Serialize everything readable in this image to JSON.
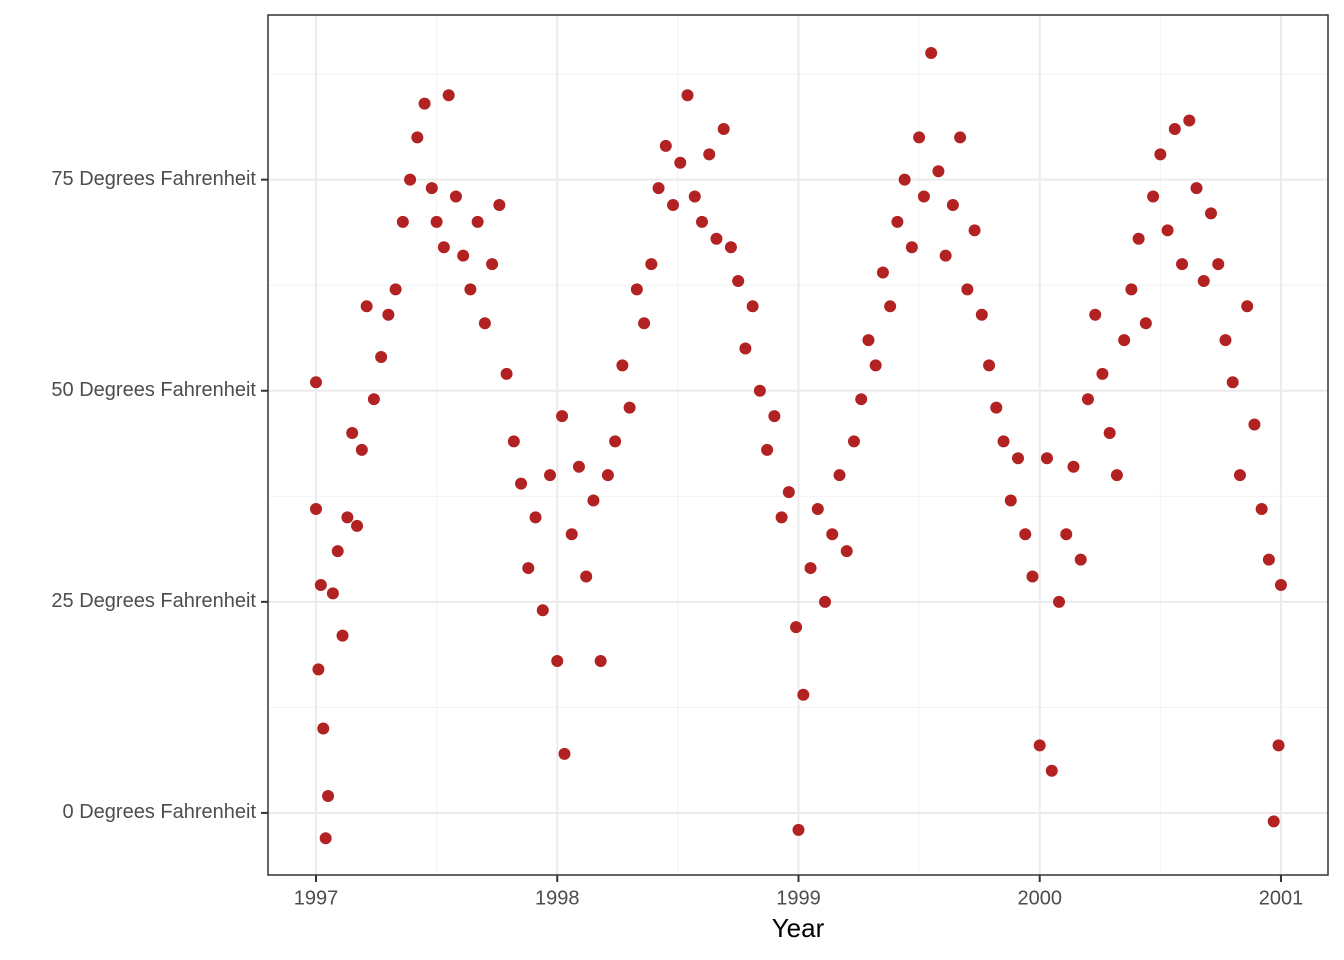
{
  "chart_data": {
    "type": "scatter",
    "x_label": "Year",
    "color": "#b22222",
    "grid": true,
    "xlim": [
      1996.801,
      2001.195
    ],
    "ylim": [
      -7.35,
      94.5
    ],
    "xticks": [
      1997,
      1998,
      1999,
      2000,
      2001
    ],
    "xticks_minor": [
      1997.5,
      1998.5,
      1999.5,
      2000.5
    ],
    "yticks": [
      {
        "value": 0,
        "label": "0 Degrees Fahrenheit"
      },
      {
        "value": 25,
        "label": "25 Degrees Fahrenheit"
      },
      {
        "value": 50,
        "label": "50 Degrees Fahrenheit"
      },
      {
        "value": 75,
        "label": "75 Degrees Fahrenheit"
      }
    ],
    "yticks_minor": [
      12.5,
      37.5,
      62.5,
      87.5
    ],
    "x": [
      1997.0,
      1997.0,
      1997.01,
      1997.02,
      1997.03,
      1997.04,
      1997.05,
      1997.07,
      1997.09,
      1997.11,
      1997.13,
      1997.15,
      1997.17,
      1997.19,
      1997.21,
      1997.24,
      1997.27,
      1997.3,
      1997.33,
      1997.36,
      1997.39,
      1997.42,
      1997.45,
      1997.48,
      1997.5,
      1997.53,
      1997.55,
      1997.58,
      1997.61,
      1997.64,
      1997.67,
      1997.7,
      1997.73,
      1997.76,
      1997.79,
      1997.82,
      1997.85,
      1997.88,
      1997.91,
      1997.94,
      1997.97,
      1998.0,
      1998.02,
      1998.03,
      1998.06,
      1998.09,
      1998.12,
      1998.15,
      1998.18,
      1998.21,
      1998.24,
      1998.27,
      1998.3,
      1998.33,
      1998.36,
      1998.39,
      1998.42,
      1998.45,
      1998.48,
      1998.51,
      1998.54,
      1998.57,
      1998.6,
      1998.63,
      1998.66,
      1998.69,
      1998.72,
      1998.75,
      1998.78,
      1998.81,
      1998.84,
      1998.87,
      1998.9,
      1998.93,
      1998.96,
      1998.99,
      1999.0,
      1999.02,
      1999.05,
      1999.08,
      1999.11,
      1999.14,
      1999.17,
      1999.2,
      1999.23,
      1999.26,
      1999.29,
      1999.32,
      1999.35,
      1999.38,
      1999.41,
      1999.44,
      1999.47,
      1999.5,
      1999.52,
      1999.55,
      1999.58,
      1999.61,
      1999.64,
      1999.67,
      1999.7,
      1999.73,
      1999.76,
      1999.79,
      1999.82,
      1999.85,
      1999.88,
      1999.91,
      1999.94,
      1999.97,
      2000.0,
      2000.03,
      2000.05,
      2000.08,
      2000.11,
      2000.14,
      2000.17,
      2000.2,
      2000.23,
      2000.26,
      2000.29,
      2000.32,
      2000.35,
      2000.38,
      2000.41,
      2000.44,
      2000.47,
      2000.5,
      2000.53,
      2000.56,
      2000.59,
      2000.62,
      2000.65,
      2000.68,
      2000.71,
      2000.74,
      2000.77,
      2000.8,
      2000.83,
      2000.86,
      2000.89,
      2000.92,
      2000.95,
      2000.97,
      2000.99,
      2001.0
    ],
    "values": [
      51,
      36,
      17,
      27,
      10,
      -3,
      2,
      26,
      31,
      21,
      35,
      45,
      34,
      43,
      60,
      49,
      54,
      59,
      62,
      70,
      75,
      80,
      84,
      74,
      70,
      67,
      85,
      73,
      66,
      62,
      70,
      58,
      65,
      72,
      52,
      44,
      39,
      29,
      35,
      24,
      40,
      18,
      47,
      7,
      33,
      41,
      28,
      37,
      18,
      40,
      44,
      53,
      48,
      62,
      58,
      65,
      74,
      79,
      72,
      77,
      85,
      73,
      70,
      78,
      68,
      81,
      67,
      63,
      55,
      60,
      50,
      43,
      47,
      35,
      38,
      22,
      -2,
      14,
      29,
      36,
      25,
      33,
      40,
      31,
      44,
      49,
      56,
      53,
      64,
      60,
      70,
      75,
      67,
      80,
      73,
      90,
      76,
      66,
      72,
      80,
      62,
      69,
      59,
      53,
      48,
      44,
      37,
      42,
      33,
      28,
      8,
      42,
      5,
      25,
      33,
      41,
      30,
      49,
      59,
      52,
      45,
      40,
      56,
      62,
      68,
      58,
      73,
      78,
      69,
      81,
      65,
      82,
      74,
      63,
      71,
      65,
      56,
      51,
      40,
      60,
      46,
      36,
      30,
      -1,
      8,
      27
    ]
  }
}
